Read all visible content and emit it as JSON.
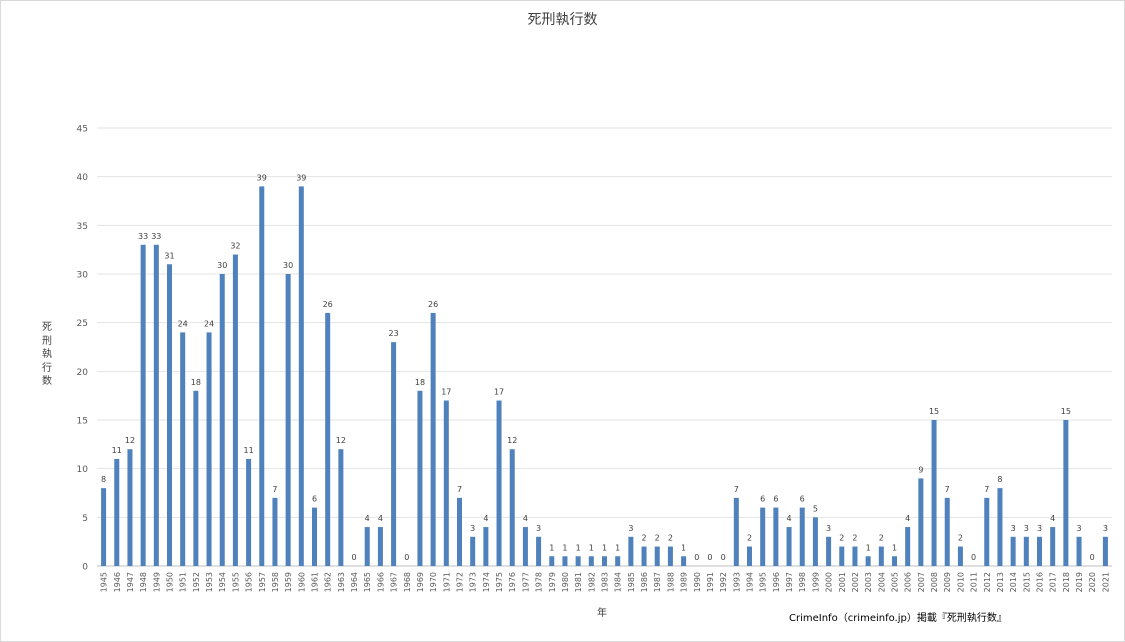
{
  "chart_data": {
    "type": "bar",
    "title": "死刑執行数",
    "xlabel": "年",
    "ylabel": "死刑執行数",
    "ylim": [
      0,
      45
    ],
    "yticks": [
      0,
      5,
      10,
      15,
      20,
      25,
      30,
      35,
      40,
      45
    ],
    "grid": true,
    "bar_color": "#4F81BD",
    "categories": [
      "1945",
      "1946",
      "1947",
      "1948",
      "1949",
      "1950",
      "1951",
      "1952",
      "1953",
      "1954",
      "1955",
      "1956",
      "1957",
      "1958",
      "1959",
      "1960",
      "1961",
      "1962",
      "1963",
      "1964",
      "1965",
      "1966",
      "1967",
      "1968",
      "1969",
      "1970",
      "1971",
      "1972",
      "1973",
      "1974",
      "1975",
      "1976",
      "1977",
      "1978",
      "1979",
      "1980",
      "1981",
      "1982",
      "1983",
      "1984",
      "1985",
      "1986",
      "1987",
      "1988",
      "1989",
      "1990",
      "1991",
      "1992",
      "1993",
      "1994",
      "1995",
      "1996",
      "1997",
      "1998",
      "1999",
      "2000",
      "2001",
      "2002",
      "2003",
      "2004",
      "2005",
      "2006",
      "2007",
      "2008",
      "2009",
      "2010",
      "2011",
      "2012",
      "2013",
      "2014",
      "2015",
      "2016",
      "2017",
      "2018",
      "2019",
      "2020",
      "2021"
    ],
    "values": [
      8,
      11,
      12,
      33,
      33,
      31,
      24,
      18,
      24,
      30,
      32,
      11,
      39,
      7,
      30,
      39,
      6,
      26,
      12,
      0,
      4,
      4,
      23,
      0,
      18,
      26,
      17,
      7,
      3,
      4,
      17,
      12,
      4,
      3,
      1,
      1,
      1,
      1,
      1,
      1,
      3,
      2,
      2,
      2,
      1,
      0,
      0,
      0,
      7,
      2,
      6,
      6,
      4,
      6,
      5,
      3,
      2,
      2,
      1,
      2,
      1,
      4,
      9,
      15,
      7,
      2,
      0,
      7,
      8,
      3,
      3,
      3,
      4,
      15,
      3,
      0,
      3
    ]
  },
  "source_note": "CrimeInfo（crimeinfo.jp）掲載『死刑執行数』"
}
